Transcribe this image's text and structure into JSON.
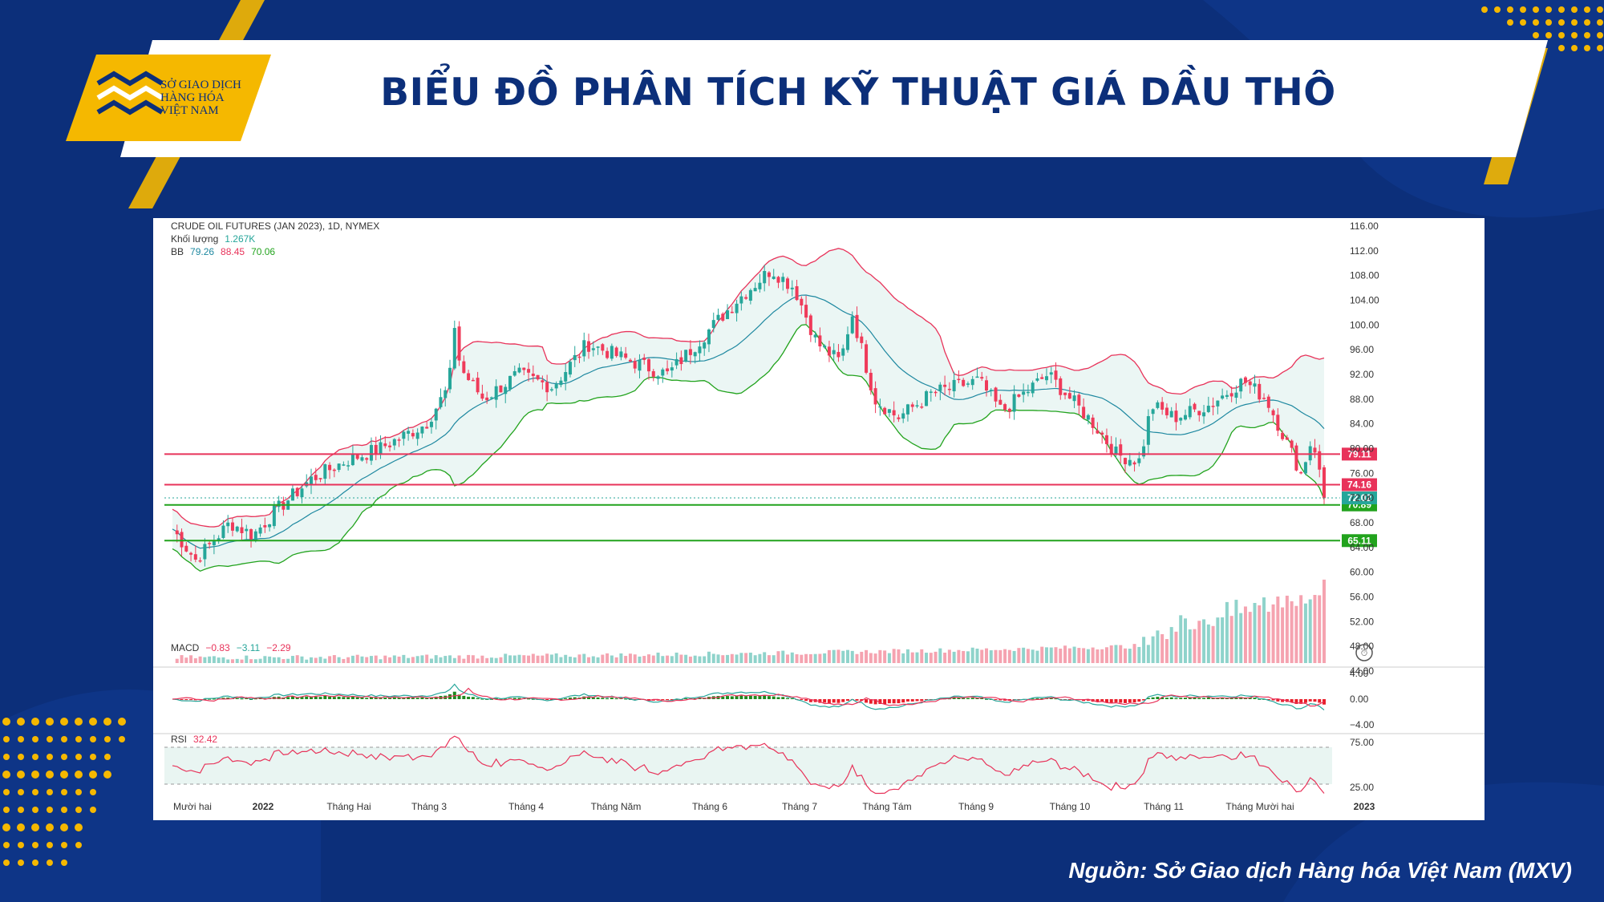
{
  "header": {
    "title": "BIỂU ĐỒ PHÂN TÍCH KỸ THUẬT GIÁ DẦU THÔ",
    "logo_lines": [
      "SỞ GIAO DỊCH",
      "HÀNG HÓA",
      "VIỆT NAM"
    ]
  },
  "footer": {
    "source": "Nguồn: Sở Giao dịch Hàng hóa Việt Nam (MXV)"
  },
  "colors": {
    "background": "#0c2f7a",
    "accent": "#f5b800",
    "up": "#26a69a",
    "down": "#ef3b5a",
    "bb_upper": "#e8335a",
    "bb_lower": "#22a31d",
    "bb_basis": "#1e88a0"
  },
  "chart_data": {
    "type": "candlestick",
    "title": "CRUDE OIL FUTURES (JAN 2023), 1D, NYMEX",
    "info": {
      "volume_label": "Khối lượng",
      "volume_value": "1.267K",
      "bb_label": "BB",
      "bb_basis": "79.26",
      "bb_upper": "88.45",
      "bb_lower": "70.06"
    },
    "x_labels": [
      "Mười hai",
      "2022",
      "Tháng Hai",
      "Tháng 3",
      "Tháng 4",
      "Tháng Năm",
      "Tháng 6",
      "Tháng 7",
      "Tháng Tám",
      "Tháng 9",
      "Tháng 10",
      "Tháng 11",
      "Tháng Mười hai",
      "2023"
    ],
    "y_ticks": [
      "116.00",
      "112.00",
      "108.00",
      "104.00",
      "100.00",
      "96.00",
      "92.00",
      "88.00",
      "84.00",
      "80.00",
      "76.00",
      "72.00",
      "68.00",
      "64.00",
      "60.00",
      "56.00",
      "52.00",
      "48.00",
      "44.00"
    ],
    "ylim": [
      44,
      116
    ],
    "price_path": [
      [
        0,
        67
      ],
      [
        0.02,
        62
      ],
      [
        0.05,
        68
      ],
      [
        0.07,
        66
      ],
      [
        0.09,
        70
      ],
      [
        0.12,
        75
      ],
      [
        0.15,
        78
      ],
      [
        0.18,
        80
      ],
      [
        0.2,
        82
      ],
      [
        0.22,
        84
      ],
      [
        0.24,
        90
      ],
      [
        0.245,
        100
      ],
      [
        0.25,
        93
      ],
      [
        0.27,
        88
      ],
      [
        0.3,
        92
      ],
      [
        0.33,
        90
      ],
      [
        0.36,
        97
      ],
      [
        0.4,
        94
      ],
      [
        0.43,
        92
      ],
      [
        0.46,
        98
      ],
      [
        0.49,
        104
      ],
      [
        0.52,
        109
      ],
      [
        0.54,
        106
      ],
      [
        0.56,
        97
      ],
      [
        0.58,
        94
      ],
      [
        0.59,
        102
      ],
      [
        0.61,
        88
      ],
      [
        0.63,
        85
      ],
      [
        0.66,
        89
      ],
      [
        0.7,
        91
      ],
      [
        0.72,
        86
      ],
      [
        0.74,
        89
      ],
      [
        0.76,
        92
      ],
      [
        0.78,
        88
      ],
      [
        0.8,
        84
      ],
      [
        0.82,
        79
      ],
      [
        0.84,
        78
      ],
      [
        0.85,
        87
      ],
      [
        0.87,
        85
      ],
      [
        0.9,
        87
      ],
      [
        0.93,
        91
      ],
      [
        0.95,
        88
      ],
      [
        0.96,
        84
      ],
      [
        0.97,
        80
      ],
      [
        0.98,
        76
      ],
      [
        0.99,
        82
      ],
      [
        1,
        72
      ]
    ],
    "horizontal_levels": [
      {
        "value": "79.11",
        "price": 79.11,
        "color": "#e8335a"
      },
      {
        "value": "74.16",
        "price": 74.16,
        "color": "#e8335a"
      },
      {
        "value": "70.89",
        "price": 70.89,
        "color": "#22a31d"
      },
      {
        "value": "65.11",
        "price": 65.11,
        "color": "#22a31d"
      }
    ],
    "last_price": "72.02",
    "macd": {
      "label": "MACD",
      "values": [
        "−0.83",
        "−3.11",
        "−2.29"
      ],
      "y_ticks": [
        "4.00",
        "0.00",
        "−4.00"
      ]
    },
    "rsi": {
      "label": "RSI",
      "value": "32.42",
      "y_ticks": [
        "75.00",
        "25.00"
      ]
    }
  }
}
